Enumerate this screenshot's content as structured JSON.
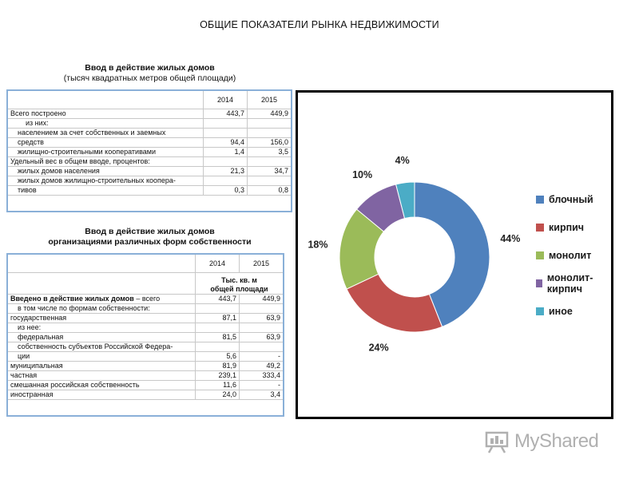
{
  "page": {
    "title": "ОБЩИЕ ПОКАЗАТЕЛИ РЫНКА НЕДВИЖИМОСТИ"
  },
  "table1": {
    "title": "Ввод в действие жилых домов",
    "subtitle": "(тысяч квадратных метров общей площади)",
    "years": [
      "2014",
      "2015"
    ],
    "rows": [
      {
        "label": "Всего построено",
        "v2014": "443,7",
        "v2015": "449,9",
        "indent": 0
      },
      {
        "label": "из них:",
        "v2014": "",
        "v2015": "",
        "indent": 2
      },
      {
        "label": "населением за счет собственных и заемных",
        "v2014": "",
        "v2015": "",
        "indent": 1
      },
      {
        "label": "средств",
        "v2014": "94,4",
        "v2015": "156,0",
        "indent": 1
      },
      {
        "label": "жилищно-строительными кооперативами",
        "v2014": "1,4",
        "v2015": "3,5",
        "indent": 1
      },
      {
        "label": "Удельный вес в общем вводе, процентов:",
        "v2014": "",
        "v2015": "",
        "indent": 0
      },
      {
        "label": "жилых домов населения",
        "v2014": "21,3",
        "v2015": "34,7",
        "indent": 1
      },
      {
        "label": "жилых домов жилищно-строительных коопера-",
        "v2014": "",
        "v2015": "",
        "indent": 1
      },
      {
        "label": "тивов",
        "v2014": "0,3",
        "v2015": "0,8",
        "indent": 1
      }
    ]
  },
  "table2": {
    "title": "Ввод в действие жилых домов",
    "subtitle": "организациями различных форм собственности",
    "years": [
      "2014",
      "2015"
    ],
    "unit": "Тыс. кв. м общей площади",
    "rows": [
      {
        "label": "Введено в действие жилых домов",
        "suffix": " – всего",
        "v2014": "443,7",
        "v2015": "449,9",
        "indent": 0,
        "bold": true
      },
      {
        "label": "в том числе по формам собственности:",
        "v2014": "",
        "v2015": "",
        "indent": 1
      },
      {
        "label": "государственная",
        "v2014": "87,1",
        "v2015": "63,9",
        "indent": 0
      },
      {
        "label": "из нее:",
        "v2014": "",
        "v2015": "",
        "indent": 1
      },
      {
        "label": "федеральная",
        "v2014": "81,5",
        "v2015": "63,9",
        "indent": 1
      },
      {
        "label": "собственность субъектов Российской Федера-",
        "v2014": "",
        "v2015": "",
        "indent": 1
      },
      {
        "label": "ции",
        "v2014": "5,6",
        "v2015": "-",
        "indent": 1
      },
      {
        "label": "муниципальная",
        "v2014": "81,9",
        "v2015": "49,2",
        "indent": 0
      },
      {
        "label": "частная",
        "v2014": "239,1",
        "v2015": "333,4",
        "indent": 0
      },
      {
        "label": "смешанная российская собственность",
        "v2014": "11,6",
        "v2015": "-",
        "indent": 0
      },
      {
        "label": "иностранная",
        "v2014": "24,0",
        "v2015": "3,4",
        "indent": 0
      }
    ]
  },
  "chart_data": {
    "type": "pie",
    "variant": "donut",
    "title": "",
    "categories": [
      "блочный",
      "кирпич",
      "монолит",
      "монолит-кирпич",
      "иное"
    ],
    "values": [
      44,
      24,
      18,
      10,
      4
    ],
    "labels": [
      "44%",
      "24%",
      "18%",
      "10%",
      "4%"
    ],
    "colors": [
      "#4f81bd",
      "#c0504d",
      "#9bbb59",
      "#8064a2",
      "#4bacc6"
    ],
    "legend": "right"
  },
  "watermark": {
    "text": "MyShared"
  }
}
